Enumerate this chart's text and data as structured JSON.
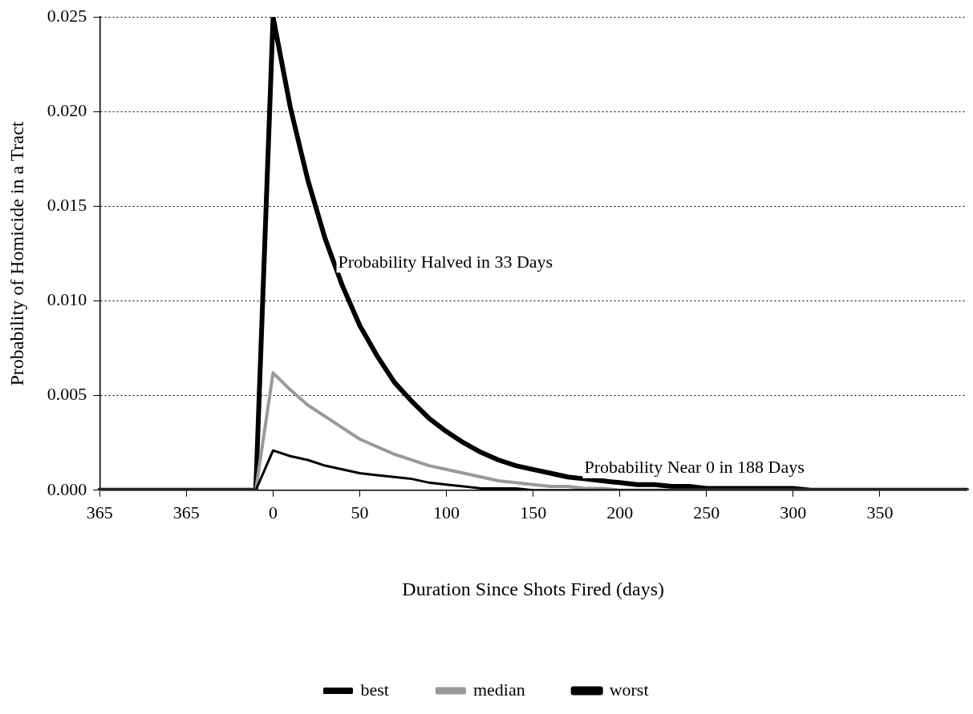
{
  "chart_data": {
    "type": "line",
    "xlabel": "Duration Since Shots Fired (days)",
    "ylabel": "Probability of Homicide in a Tract",
    "categories": [
      "365",
      null,
      null,
      null,
      null,
      "365",
      null,
      null,
      null,
      null,
      "0",
      null,
      null,
      null,
      null,
      "50",
      null,
      null,
      null,
      null,
      "100",
      null,
      null,
      null,
      null,
      "150",
      null,
      null,
      null,
      null,
      "200",
      null,
      null,
      null,
      null,
      "250",
      null,
      null,
      null,
      null,
      "300",
      null,
      null,
      null,
      null,
      "350",
      null,
      null,
      null,
      null,
      null
    ],
    "ylim": [
      0,
      0.025
    ],
    "yticks": [
      {
        "value": 0,
        "label": "0.000"
      },
      {
        "value": 0.005,
        "label": "0.005"
      },
      {
        "value": 0.01,
        "label": "0.010"
      },
      {
        "value": 0.015,
        "label": "0.015"
      },
      {
        "value": 0.02,
        "label": "0.020"
      },
      {
        "value": 0.025,
        "label": "0.025"
      }
    ],
    "grid": "y",
    "legend": "bottom",
    "marker": "none",
    "line_style": "solid",
    "series": [
      {
        "name": "best",
        "color": "#000000",
        "values": [
          0,
          0,
          0,
          0,
          0,
          0,
          0,
          0,
          0,
          0,
          0.0021,
          0.0018,
          0.0016,
          0.0013,
          0.0011,
          0.0009,
          0.0008,
          0.0007,
          0.0006,
          0.0004,
          0.0003,
          0.0002,
          0.0001,
          0.0001,
          0.0001,
          0,
          0,
          0,
          0,
          0,
          0,
          0,
          0,
          0,
          0,
          0,
          0,
          0,
          0,
          0,
          0,
          0,
          0,
          0,
          0,
          0,
          0,
          0,
          0,
          0,
          0
        ]
      },
      {
        "name": "median",
        "color": "#999999",
        "values": [
          0,
          0,
          0,
          0,
          0,
          0,
          0,
          0,
          0,
          0,
          0.0062,
          0.0053,
          0.0045,
          0.0039,
          0.0033,
          0.0027,
          0.0023,
          0.0019,
          0.0016,
          0.0013,
          0.0011,
          0.0009,
          0.0007,
          0.0005,
          0.0004,
          0.0003,
          0.0002,
          0.0002,
          0.0001,
          0.0001,
          0,
          0,
          0,
          0,
          0,
          0,
          0,
          0,
          0,
          0,
          0,
          0,
          0,
          0,
          0,
          0,
          0,
          0,
          0,
          0,
          0
        ]
      },
      {
        "name": "worst",
        "color": "#000000",
        "values": [
          0,
          0,
          0,
          0,
          0,
          0,
          0,
          0,
          0,
          0,
          0.025,
          0.0202,
          0.0164,
          0.0133,
          0.0108,
          0.0087,
          0.0071,
          0.0057,
          0.0047,
          0.0038,
          0.0031,
          0.0025,
          0.002,
          0.0016,
          0.0013,
          0.0011,
          0.0009,
          0.0007,
          0.0006,
          0.0005,
          0.0004,
          0.0003,
          0.0003,
          0.0002,
          0.0002,
          0.0001,
          0.0001,
          0.0001,
          0.0001,
          0.0001,
          0.0001,
          0,
          0,
          0,
          0,
          0,
          0,
          0,
          0,
          0,
          0
        ]
      }
    ],
    "annotations": [
      "Probability Halved in 33 Days",
      "Probability Near 0 in 188 Days"
    ]
  }
}
